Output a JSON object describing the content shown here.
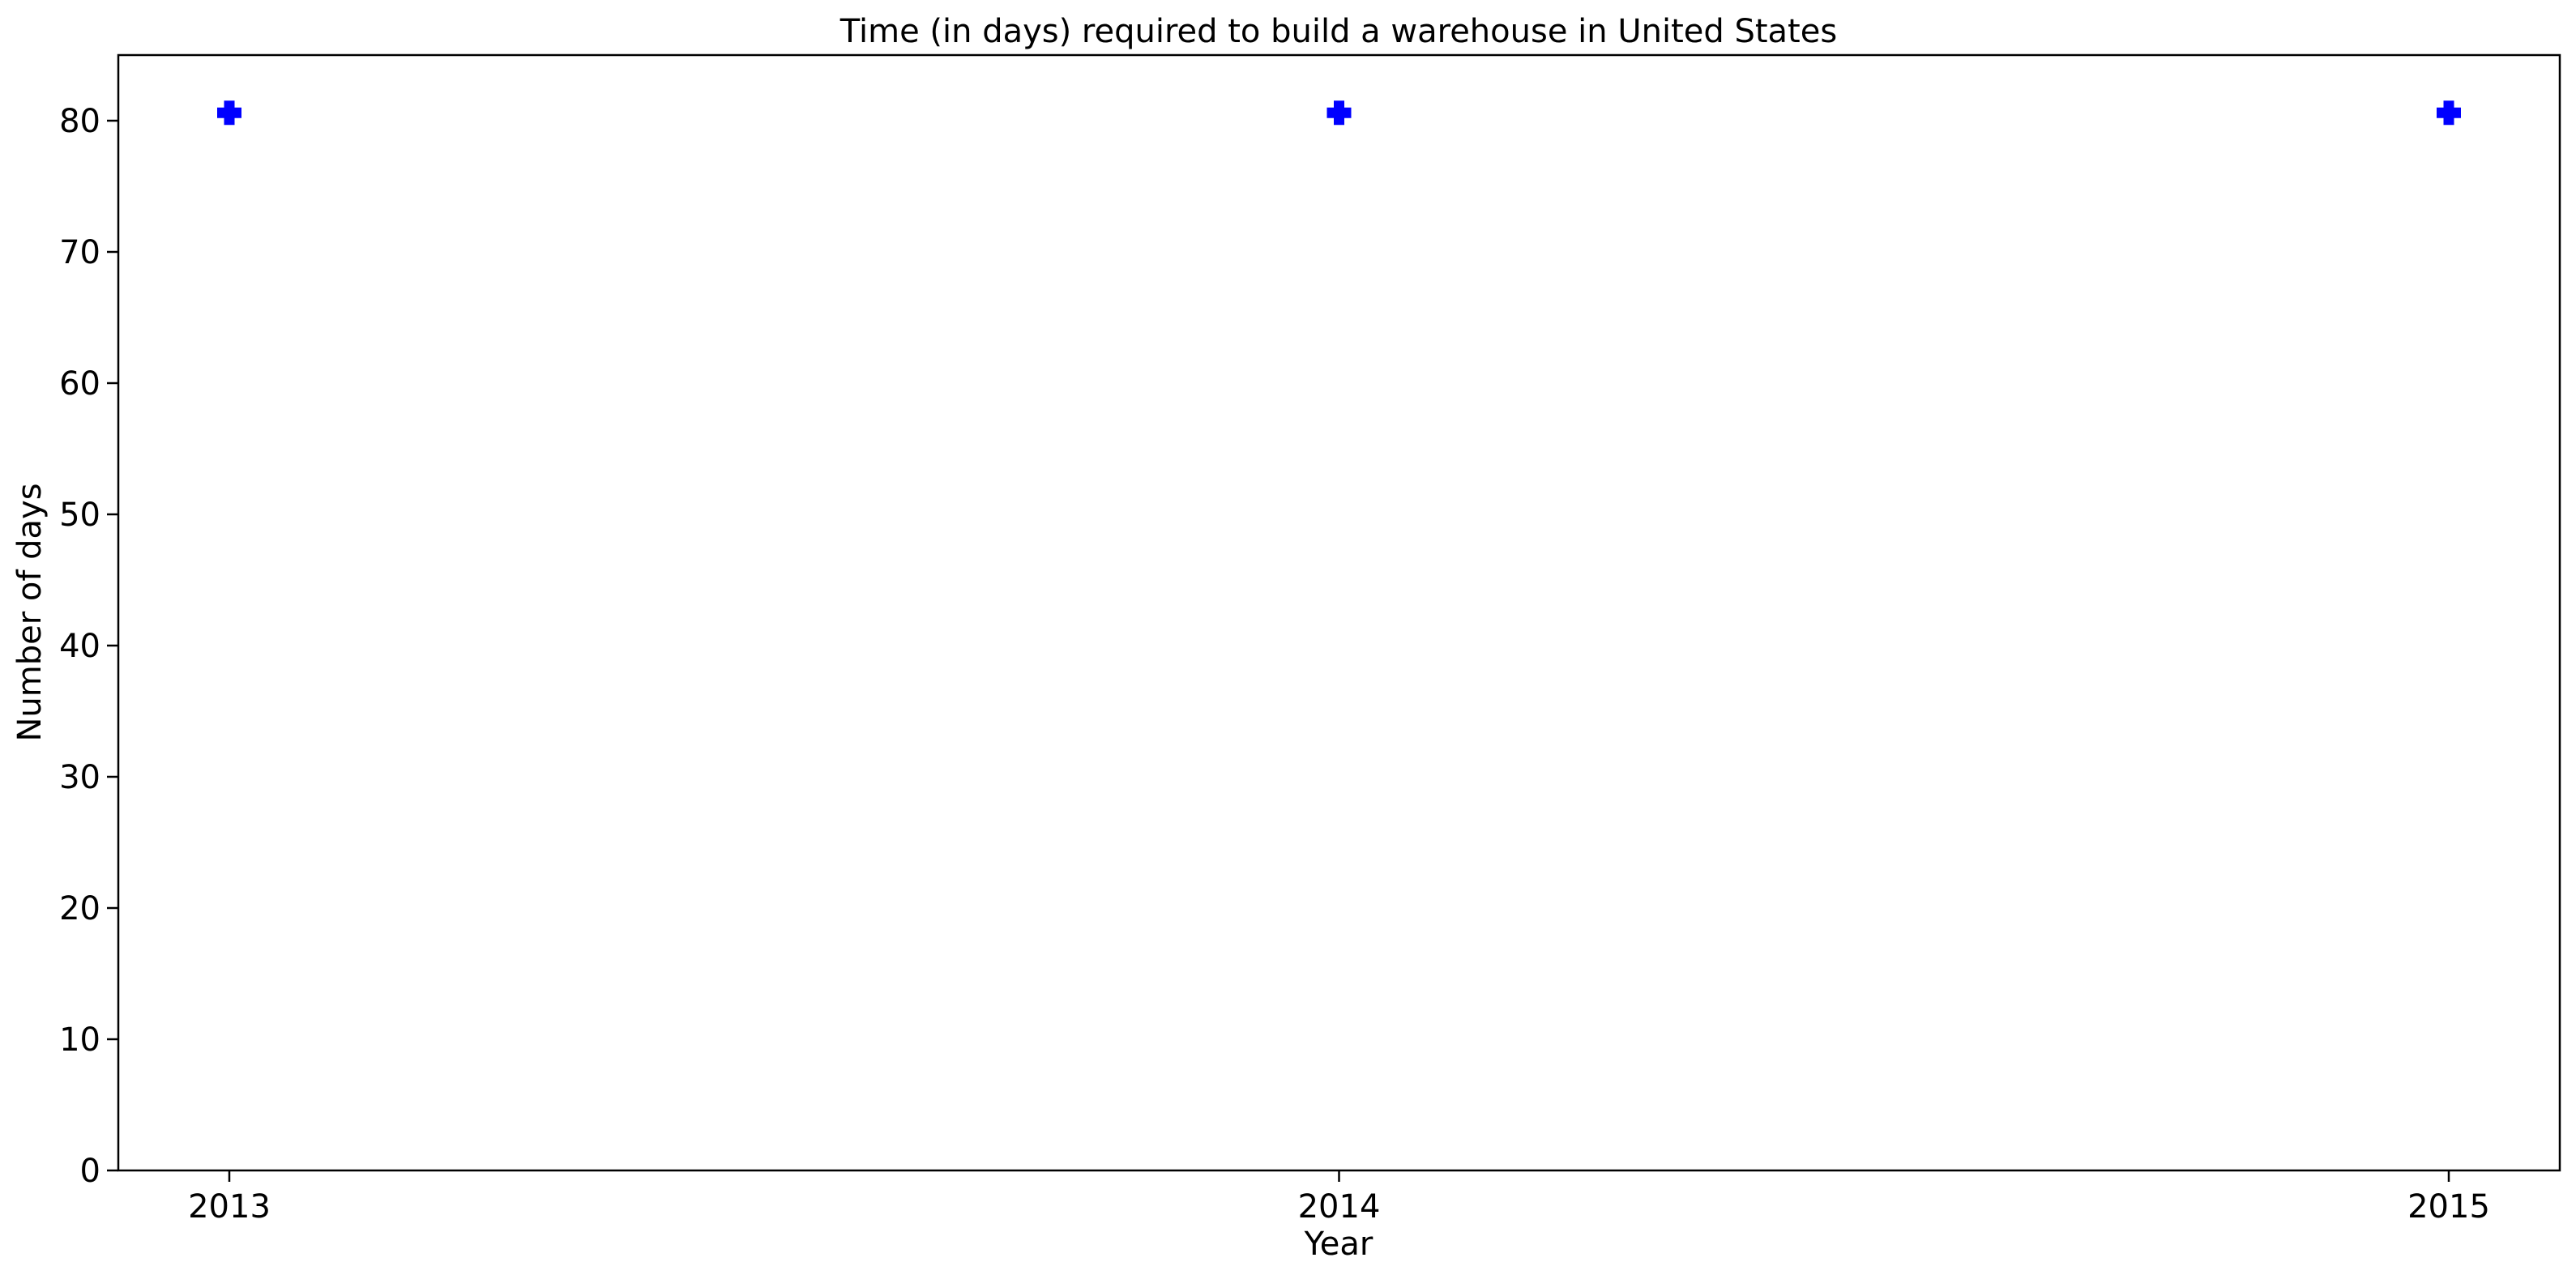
{
  "chart_data": {
    "type": "scatter",
    "title": "Time (in days) required to build a warehouse in United States",
    "xlabel": "Year",
    "ylabel": "Number of days",
    "categories": [
      "2013",
      "2014",
      "2015"
    ],
    "series": [
      {
        "values": [
          80.6,
          80.6,
          80.6
        ],
        "color": "#0000ff",
        "marker": "plus-filled"
      }
    ],
    "ylim": [
      0,
      85
    ],
    "yticks": [
      0,
      10,
      20,
      30,
      40,
      50,
      60,
      70,
      80
    ],
    "grid": false,
    "legend": "none"
  }
}
